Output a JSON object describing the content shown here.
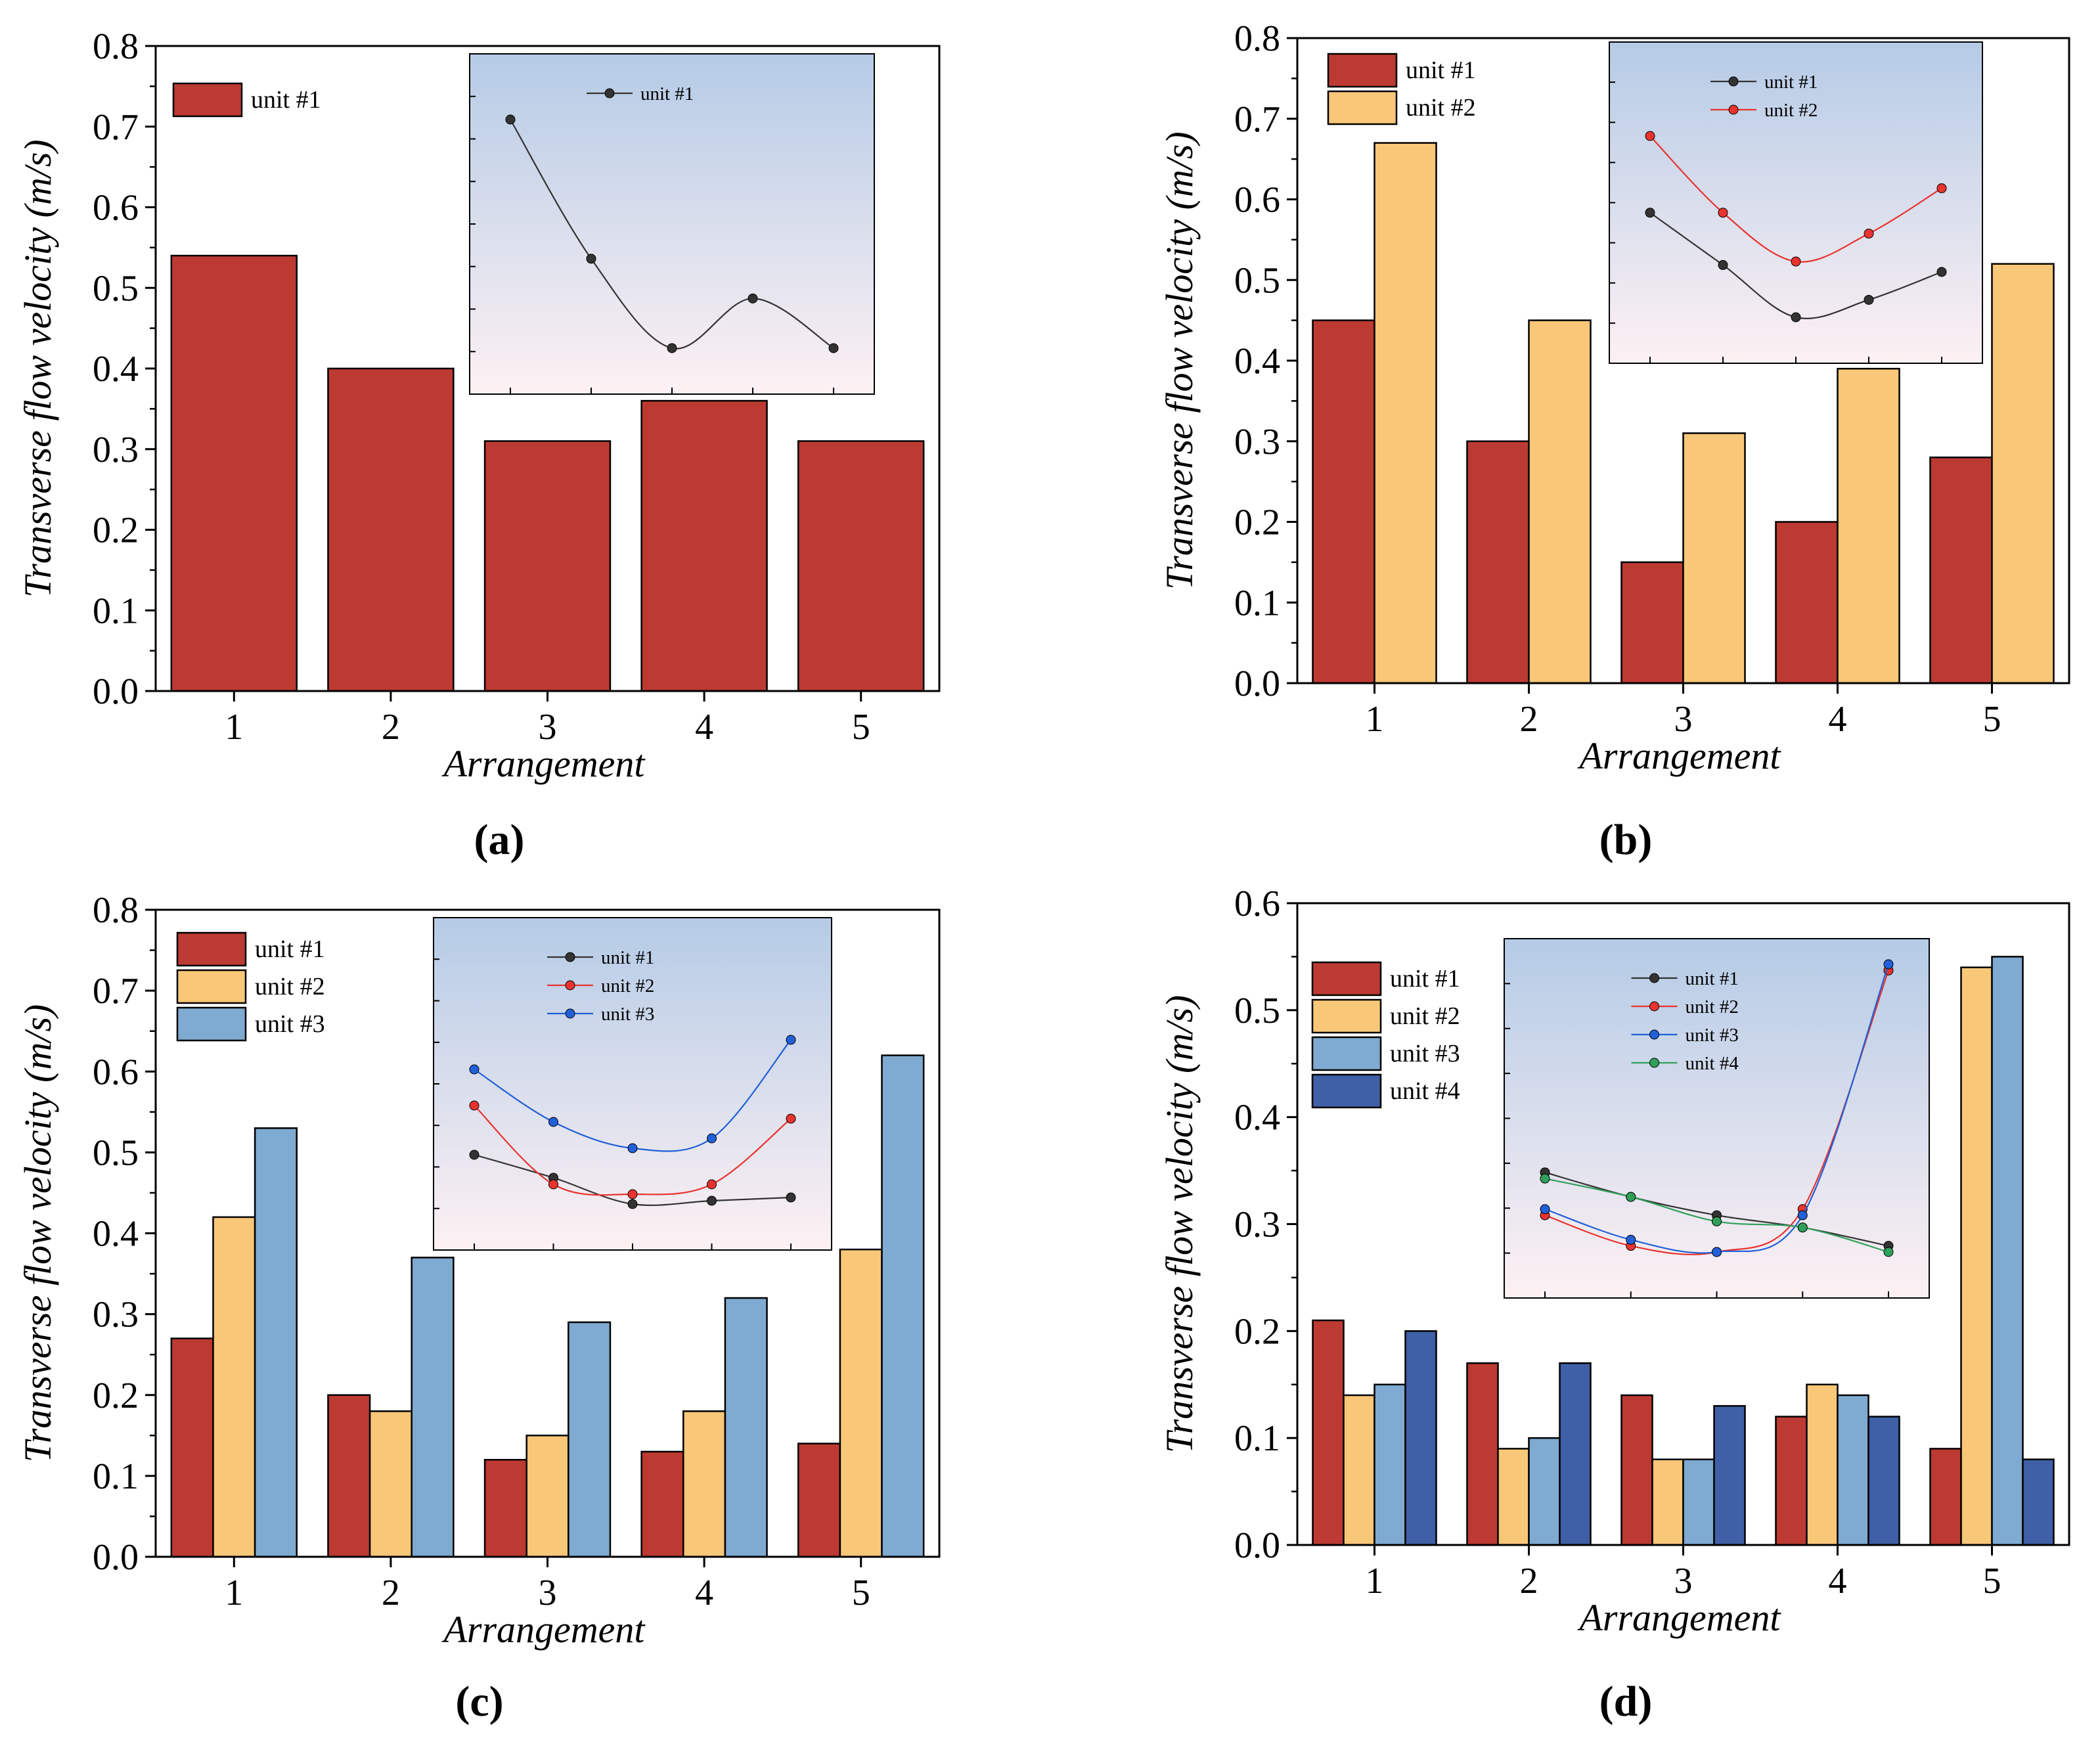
{
  "colors": {
    "unit #1": "#bc3a32",
    "unit #2": "#f8c777",
    "unit #3": "#7faad1",
    "unit #4": "#3f5fa6"
  },
  "inset_colors": {
    "unit #1": "#333333",
    "unit #2": "#e8332f",
    "unit #3": "#2160d8",
    "unit #4": "#2f9f5a"
  },
  "chart_data": [
    {
      "panel": "(a)",
      "type": "bar",
      "categories": [
        "1",
        "2",
        "3",
        "4",
        "5"
      ],
      "series": [
        {
          "name": "unit #1",
          "values": [
            0.54,
            0.4,
            0.31,
            0.36,
            0.31
          ]
        }
      ],
      "xlabel": "Arrangement",
      "ylabel": "Transverse flow velocity (m/s)",
      "ylim": [
        0,
        0.8
      ],
      "yticks": [
        "0.0",
        "0.1",
        "0.2",
        "0.3",
        "0.4",
        "0.5",
        "0.6",
        "0.7",
        "0.8"
      ],
      "legend": "top-left",
      "inset": {
        "type": "line",
        "series": [
          "unit #1"
        ],
        "legend": "top-center"
      }
    },
    {
      "panel": "(b)",
      "type": "bar",
      "categories": [
        "1",
        "2",
        "3",
        "4",
        "5"
      ],
      "series": [
        {
          "name": "unit #1",
          "values": [
            0.45,
            0.3,
            0.15,
            0.2,
            0.28
          ]
        },
        {
          "name": "unit #2",
          "values": [
            0.67,
            0.45,
            0.31,
            0.39,
            0.52
          ]
        }
      ],
      "xlabel": "Arrangement",
      "ylabel": "Transverse flow velocity (m/s)",
      "ylim": [
        0,
        0.8
      ],
      "yticks": [
        "0.0",
        "0.1",
        "0.2",
        "0.3",
        "0.4",
        "0.5",
        "0.6",
        "0.7",
        "0.8"
      ],
      "legend": "top-left",
      "inset": {
        "type": "line",
        "series": [
          "unit #1",
          "unit #2"
        ],
        "legend": "top-center"
      }
    },
    {
      "panel": "(c)",
      "type": "bar",
      "categories": [
        "1",
        "2",
        "3",
        "4",
        "5"
      ],
      "series": [
        {
          "name": "unit #1",
          "values": [
            0.27,
            0.2,
            0.12,
            0.13,
            0.14
          ]
        },
        {
          "name": "unit #2",
          "values": [
            0.42,
            0.18,
            0.15,
            0.18,
            0.38
          ]
        },
        {
          "name": "unit #3",
          "values": [
            0.53,
            0.37,
            0.29,
            0.32,
            0.62
          ]
        }
      ],
      "xlabel": "Arrangement",
      "ylabel": "Transverse flow velocity (m/s)",
      "ylim": [
        0,
        0.8
      ],
      "yticks": [
        "0.0",
        "0.1",
        "0.2",
        "0.3",
        "0.4",
        "0.5",
        "0.6",
        "0.7",
        "0.8"
      ],
      "legend": "top-left",
      "inset": {
        "type": "line",
        "series": [
          "unit #1",
          "unit #2",
          "unit #3"
        ],
        "legend": "top-center"
      }
    },
    {
      "panel": "(d)",
      "type": "bar",
      "categories": [
        "1",
        "2",
        "3",
        "4",
        "5"
      ],
      "series": [
        {
          "name": "unit #1",
          "values": [
            0.21,
            0.17,
            0.14,
            0.12,
            0.09
          ]
        },
        {
          "name": "unit #2",
          "values": [
            0.14,
            0.09,
            0.08,
            0.15,
            0.54
          ]
        },
        {
          "name": "unit #3",
          "values": [
            0.15,
            0.1,
            0.08,
            0.14,
            0.55
          ]
        },
        {
          "name": "unit #4",
          "values": [
            0.2,
            0.17,
            0.13,
            0.12,
            0.08
          ]
        }
      ],
      "xlabel": "Arrangement",
      "ylabel": "Transverse flow velocity (m/s)",
      "ylim": [
        0,
        0.6
      ],
      "yticks": [
        "0.0",
        "0.1",
        "0.2",
        "0.3",
        "0.4",
        "0.5",
        "0.6"
      ],
      "legend": "top-left",
      "inset": {
        "type": "line",
        "series": [
          "unit #1",
          "unit #2",
          "unit #3",
          "unit #4"
        ],
        "legend": "top-center"
      }
    }
  ]
}
